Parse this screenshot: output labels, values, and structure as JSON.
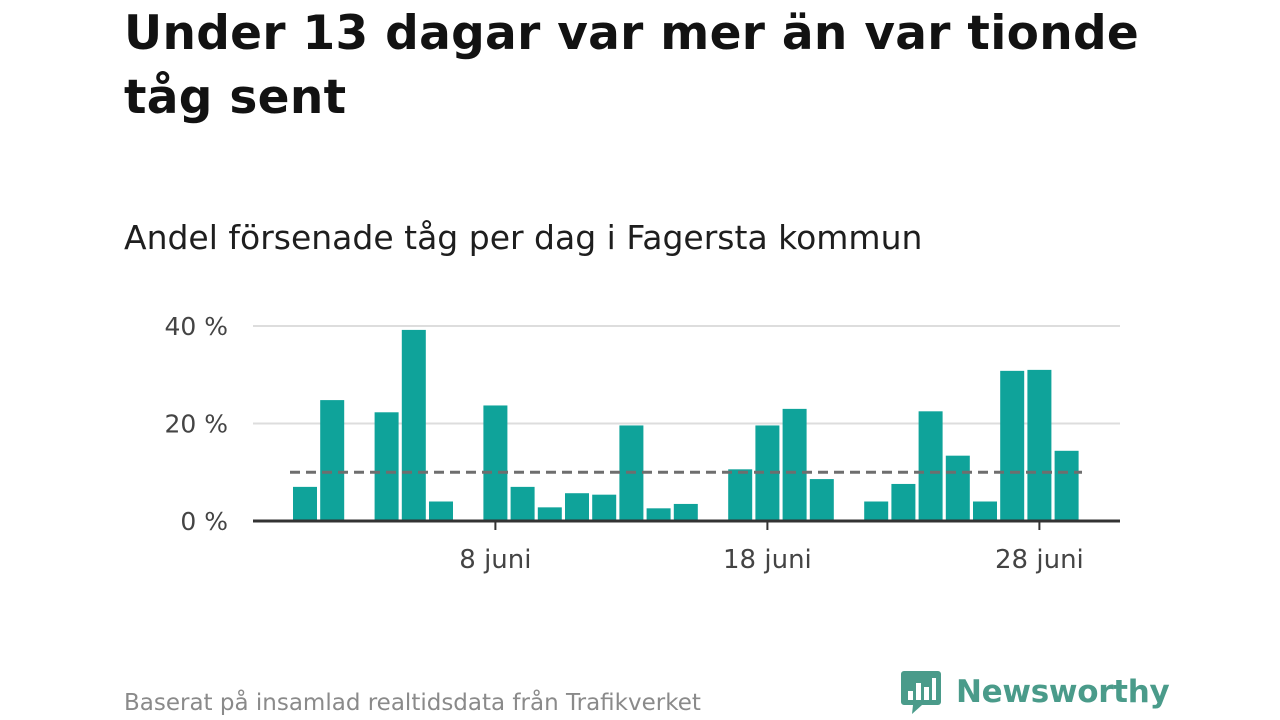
{
  "header": {
    "title": "Under 13 dagar var mer än var tionde tåg sent",
    "subtitle": "Andel försenade tåg per dag i Fagersta kommun"
  },
  "footer": {
    "source": "Baserat på insamlad realtidsdata från Trafikverket",
    "brand": "Newsworthy"
  },
  "colors": {
    "bar": "#0fa39a",
    "reference_line": "#6e6e6e",
    "gridline": "#dddddd",
    "axis": "#333333",
    "brand": "#4a9b8a"
  },
  "chart_data": {
    "type": "bar",
    "categories": [
      "1 juni",
      "2 juni",
      "3 juni",
      "4 juni",
      "5 juni",
      "6 juni",
      "7 juni",
      "8 juni",
      "9 juni",
      "10 juni",
      "11 juni",
      "12 juni",
      "13 juni",
      "14 juni",
      "15 juni",
      "16 juni",
      "17 juni",
      "18 juni",
      "19 juni",
      "20 juni",
      "21 juni",
      "22 juni",
      "23 juni",
      "24 juni",
      "25 juni",
      "26 juni",
      "27 juni",
      "28 juni",
      "29 juni"
    ],
    "values": [
      7,
      24.8,
      null,
      22.3,
      39.2,
      4,
      null,
      23.7,
      7,
      2.8,
      5.7,
      5.4,
      19.6,
      2.6,
      3.5,
      null,
      10.6,
      19.6,
      23,
      8.6,
      null,
      4,
      7.6,
      22.5,
      13.4,
      4,
      30.8,
      31,
      14.4
    ],
    "reference_line": 10,
    "y_ticks": [
      {
        "value": 0,
        "label": "0 %"
      },
      {
        "value": 20,
        "label": "20 %"
      },
      {
        "value": 40,
        "label": "40 %"
      }
    ],
    "x_ticks": [
      {
        "category": "8 juni",
        "label": "8 juni"
      },
      {
        "category": "18 juni",
        "label": "18 juni"
      },
      {
        "category": "28 juni",
        "label": "28 juni"
      }
    ],
    "ylim": [
      0,
      40
    ],
    "grid": true,
    "legend": "none"
  }
}
